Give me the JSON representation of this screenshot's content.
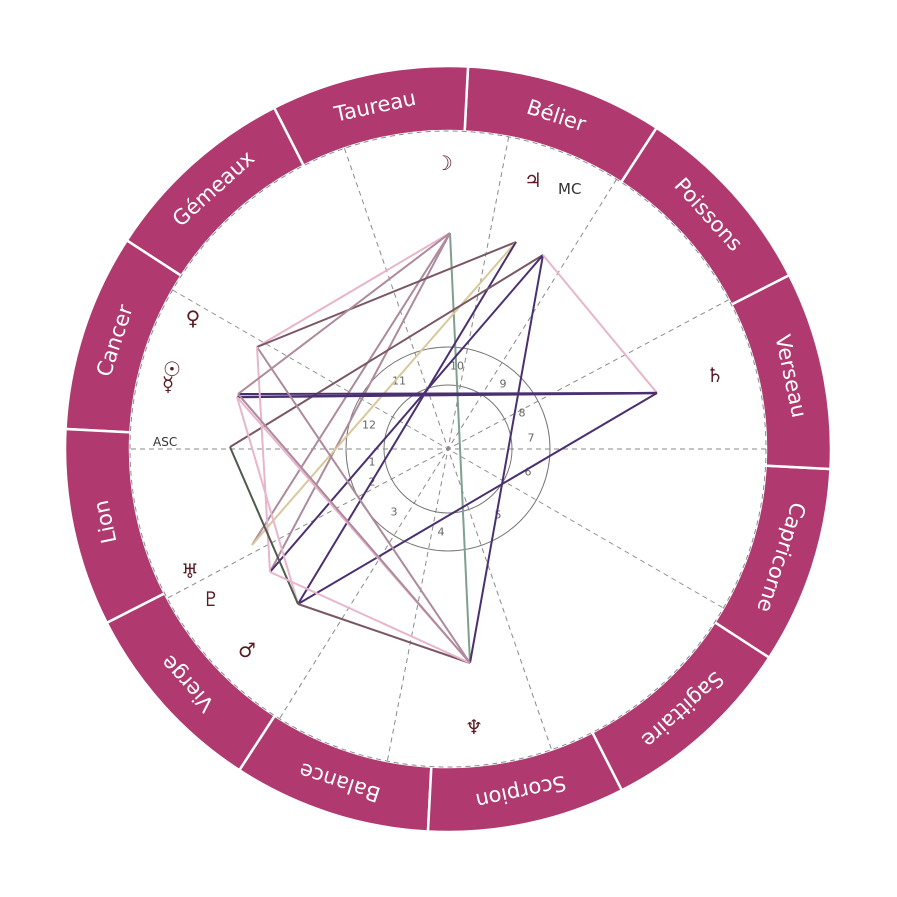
{
  "colors": {
    "band": "#b03a6f",
    "band_divider": "#ffffff",
    "sign_text": "#ffffff",
    "dashed": "#8a8a8a",
    "inner_ring": "#777777",
    "glyph": "#5a1b22",
    "aspect_dark": "#4a3070",
    "aspect_pink": "#e8b5cc",
    "aspect_mauve": "#ad8a9c",
    "aspect_brown": "#7a5863",
    "aspect_green": "#7fa08f",
    "aspect_olive": "#4e5a4a",
    "aspect_tan": "#d9c89a"
  },
  "signs": [
    {
      "name": "Bélier"
    },
    {
      "name": "Taureau"
    },
    {
      "name": "Gémeaux"
    },
    {
      "name": "Cancer"
    },
    {
      "name": "Lion"
    },
    {
      "name": "Vierge"
    },
    {
      "name": "Balance"
    },
    {
      "name": "Scorpion"
    },
    {
      "name": "Sagittaire"
    },
    {
      "name": "Capricorne"
    },
    {
      "name": "Verseau"
    },
    {
      "name": "Poissons"
    }
  ],
  "angles": {
    "asc": "ASC",
    "mc": "MC"
  },
  "houses": [
    "1",
    "2",
    "3",
    "4",
    "5",
    "6",
    "7",
    "8",
    "9",
    "10",
    "11",
    "12"
  ],
  "planets": [
    {
      "id": "moon",
      "glyph": "☽",
      "name": "moon"
    },
    {
      "id": "jupiter",
      "glyph": "♃",
      "name": "jupiter"
    },
    {
      "id": "saturn",
      "glyph": "♄",
      "name": "saturn"
    },
    {
      "id": "neptune",
      "glyph": "♆",
      "name": "neptune"
    },
    {
      "id": "mars",
      "glyph": "♂",
      "name": "mars"
    },
    {
      "id": "pluto",
      "glyph": "♇",
      "name": "pluto"
    },
    {
      "id": "uranus",
      "glyph": "♅",
      "name": "uranus"
    },
    {
      "id": "mercury",
      "glyph": "☿",
      "name": "mercury"
    },
    {
      "id": "sun",
      "glyph": "☉",
      "name": "sun"
    },
    {
      "id": "venus",
      "glyph": "♀",
      "name": "venus"
    }
  ]
}
